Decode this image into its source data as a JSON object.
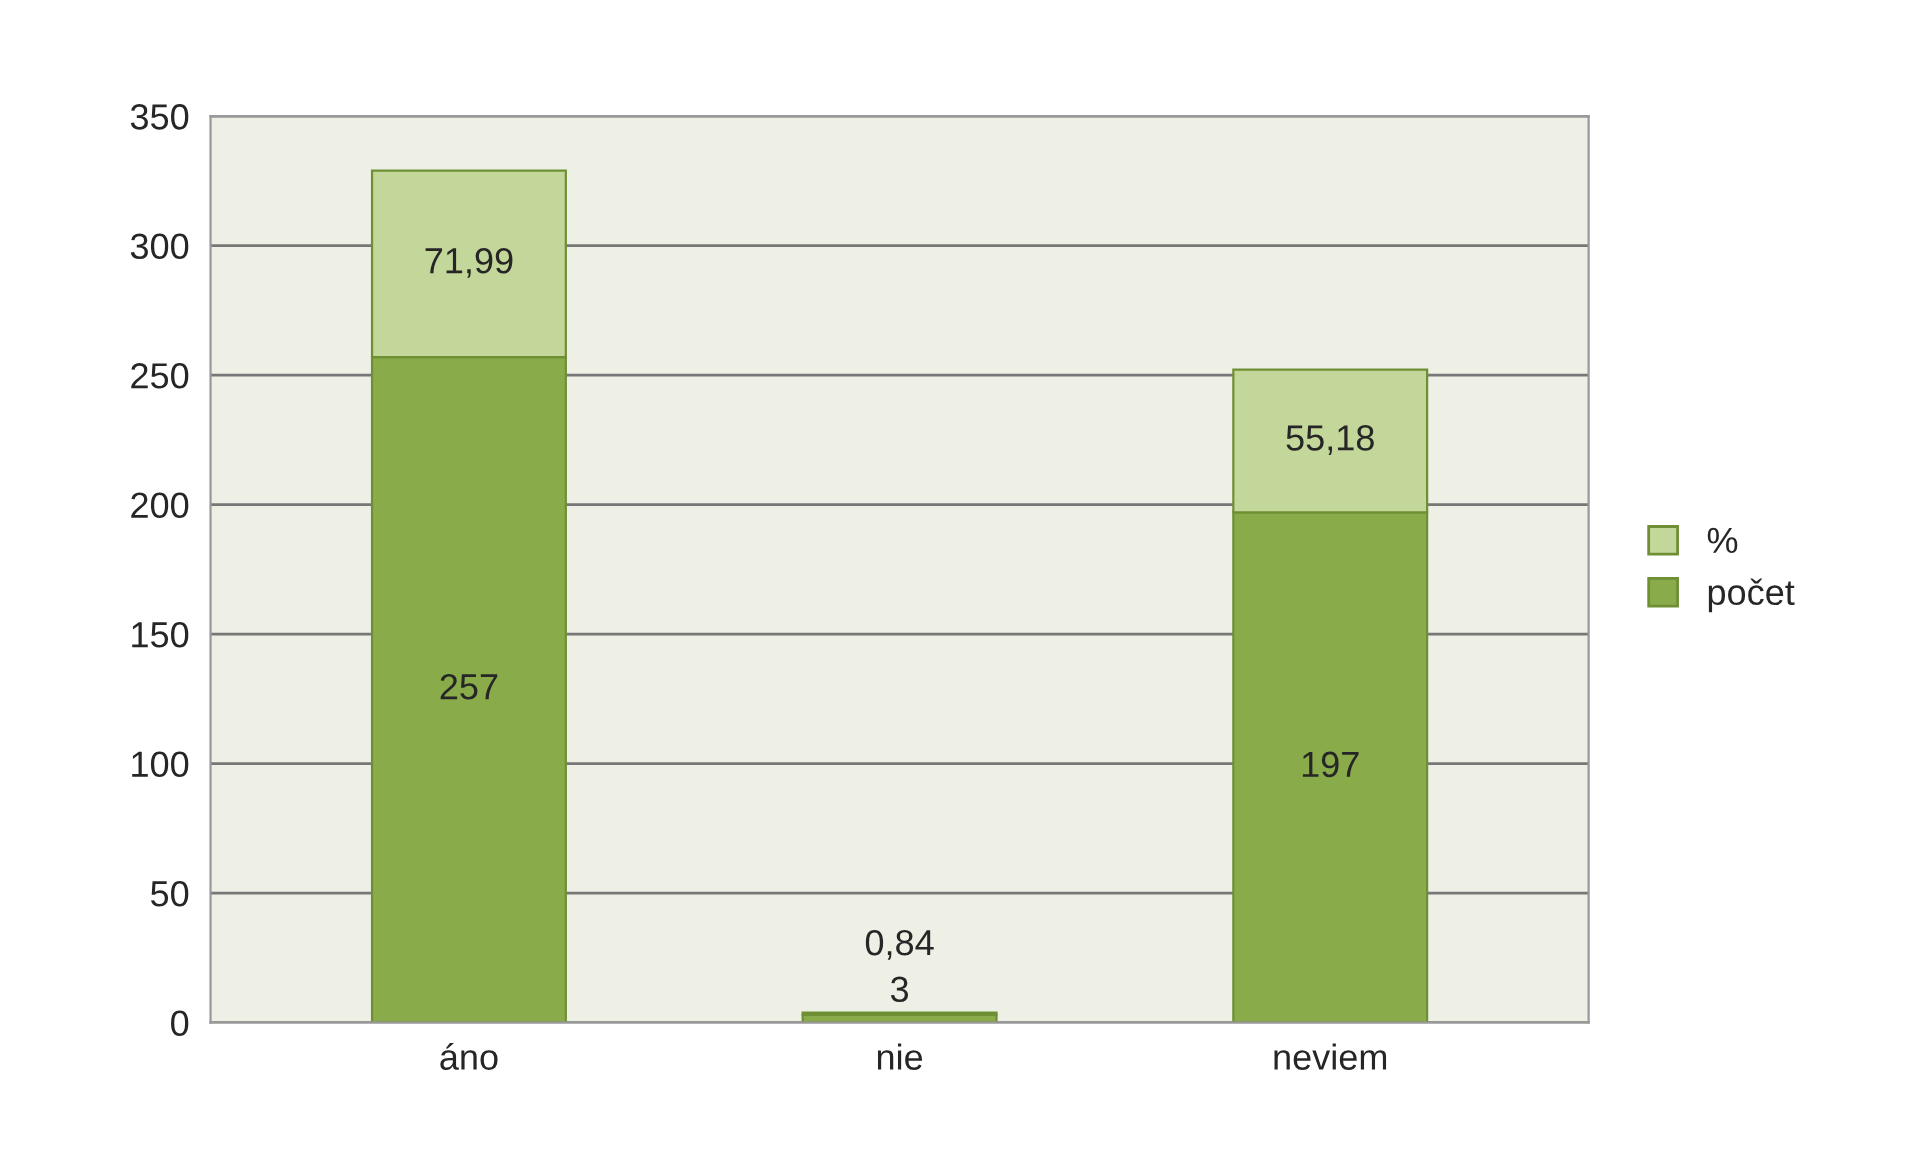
{
  "chart_data": {
    "type": "bar",
    "stacked": true,
    "categories": [
      "áno",
      "nie",
      "neviem"
    ],
    "series": [
      {
        "name": "počet",
        "color": "#8aab4a",
        "values": [
          257,
          3,
          197
        ],
        "value_labels": [
          "257",
          "3",
          "197"
        ]
      },
      {
        "name": "%",
        "color": "#c4d79b",
        "values": [
          71.99,
          0.84,
          55.18
        ],
        "value_labels": [
          "71,99",
          "0,84",
          "55,18"
        ]
      }
    ],
    "ylim": [
      0,
      350
    ],
    "yticks": [
      0,
      50,
      100,
      150,
      200,
      250,
      300,
      350
    ],
    "grid": "y",
    "legend": "right"
  }
}
